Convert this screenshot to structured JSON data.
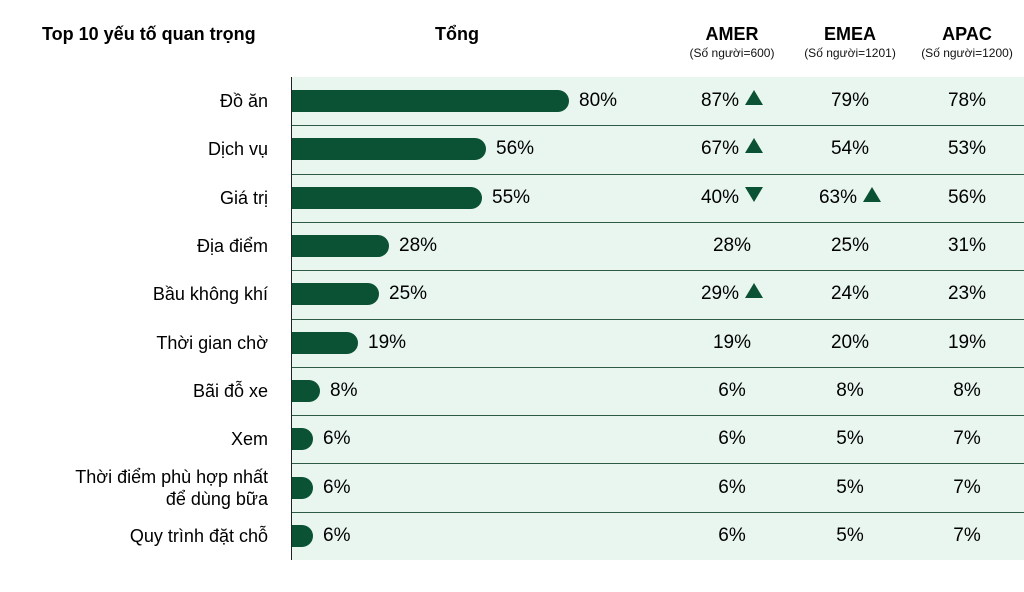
{
  "header": {
    "title": "Top 10 yếu tố quan trọng",
    "total_label": "Tổng",
    "regions": [
      {
        "name": "AMER",
        "sub": "(Số người=600)"
      },
      {
        "name": "EMEA",
        "sub": "(Số người=1201)"
      },
      {
        "name": "APAC",
        "sub": "(Số người=1200)"
      }
    ]
  },
  "colors": {
    "bar": "#0b5133",
    "panel": "#e8f6ef",
    "arrow": "#0b5133"
  },
  "chart_data": {
    "type": "bar",
    "orientation": "horizontal",
    "title": "Top 10 yếu tố quan trọng",
    "categories": [
      "Đồ ăn",
      "Dịch vụ",
      "Giá trị",
      "Địa điểm",
      "Bầu không khí",
      "Thời gian chờ",
      "Bãi đỗ xe",
      "Xem",
      "Thời điểm phù hợp nhất để dùng bữa",
      "Quy trình đặt chỗ"
    ],
    "category_lines": [
      [
        "Đồ ăn"
      ],
      [
        "Dịch vụ"
      ],
      [
        "Giá trị"
      ],
      [
        "Địa điểm"
      ],
      [
        "Bầu không khí"
      ],
      [
        "Thời gian chờ"
      ],
      [
        "Bãi đỗ xe"
      ],
      [
        "Xem"
      ],
      [
        "Thời điểm phù hợp nhất",
        "để dùng bữa"
      ],
      [
        "Quy trình đặt chỗ"
      ]
    ],
    "values": [
      80,
      56,
      55,
      28,
      25,
      19,
      8,
      6,
      6,
      6
    ],
    "value_labels": [
      "80%",
      "56%",
      "55%",
      "28%",
      "25%",
      "19%",
      "8%",
      "6%",
      "6%",
      "6%"
    ],
    "unit": "%",
    "xlim": [
      0,
      100
    ],
    "regional": [
      {
        "AMER": "87%",
        "AMER_trend": "up",
        "EMEA": "79%",
        "EMEA_trend": "",
        "APAC": "78%",
        "APAC_trend": ""
      },
      {
        "AMER": "67%",
        "AMER_trend": "up",
        "EMEA": "54%",
        "EMEA_trend": "",
        "APAC": "53%",
        "APAC_trend": ""
      },
      {
        "AMER": "40%",
        "AMER_trend": "down",
        "EMEA": "63%",
        "EMEA_trend": "up",
        "APAC": "56%",
        "APAC_trend": ""
      },
      {
        "AMER": "28%",
        "AMER_trend": "",
        "EMEA": "25%",
        "EMEA_trend": "",
        "APAC": "31%",
        "APAC_trend": ""
      },
      {
        "AMER": "29%",
        "AMER_trend": "up",
        "EMEA": "24%",
        "EMEA_trend": "",
        "APAC": "23%",
        "APAC_trend": ""
      },
      {
        "AMER": "19%",
        "AMER_trend": "",
        "EMEA": "20%",
        "EMEA_trend": "",
        "APAC": "19%",
        "APAC_trend": ""
      },
      {
        "AMER": "6%",
        "AMER_trend": "",
        "EMEA": "8%",
        "EMEA_trend": "",
        "APAC": "8%",
        "APAC_trend": ""
      },
      {
        "AMER": "6%",
        "AMER_trend": "",
        "EMEA": "5%",
        "EMEA_trend": "",
        "APAC": "7%",
        "APAC_trend": ""
      },
      {
        "AMER": "6%",
        "AMER_trend": "",
        "EMEA": "5%",
        "EMEA_trend": "",
        "APAC": "7%",
        "APAC_trend": ""
      },
      {
        "AMER": "6%",
        "AMER_trend": "",
        "EMEA": "5%",
        "EMEA_trend": "",
        "APAC": "7%",
        "APAC_trend": ""
      }
    ]
  }
}
